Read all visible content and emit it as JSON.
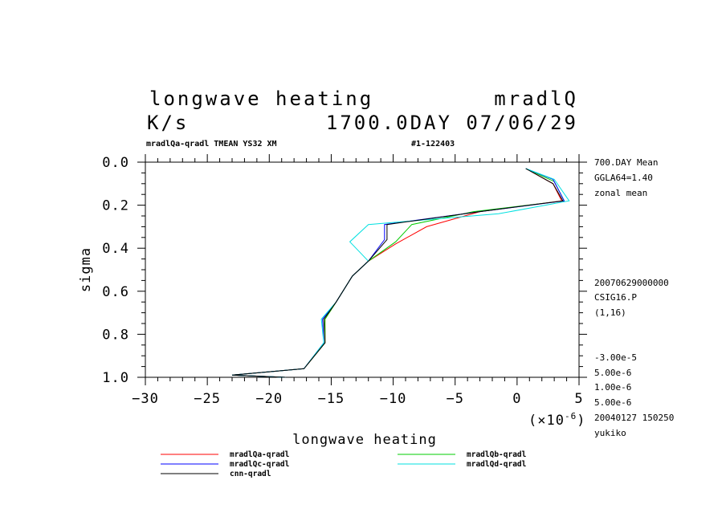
{
  "header": {
    "title_left": "longwave heating",
    "title_right": "mradlQ",
    "units": "K/s",
    "time_label": "1700.0DAY 07/06/29",
    "subtitle": "mradlQa-qradl TMEAN YS32 XM",
    "run_id": "#1-122403"
  },
  "side_info": {
    "top": [
      "700.DAY Mean",
      "GGLA64=1.40",
      "zonal mean"
    ],
    "middle": [
      "20070629000000",
      "CSIG16.P",
      "(1,16)"
    ],
    "bottom": [
      "-3.00e-5",
      "5.00e-6",
      "1.00e-6",
      "5.00e-6",
      "20040127 150250",
      "yukiko"
    ]
  },
  "chart_data": {
    "type": "line",
    "title": "longwave heating",
    "xlabel": "longwave heating",
    "ylabel": "sigma",
    "x_scale_note": "(×10",
    "x_scale_exp": "-6",
    "x_scale_close": ")",
    "xlim": [
      -30,
      5
    ],
    "ylim": [
      1.0,
      0.0
    ],
    "y_inverted": true,
    "x_ticks": [
      -30,
      -25,
      -20,
      -15,
      -10,
      -5,
      0,
      5
    ],
    "x_tick_labels": [
      "−30",
      "−25",
      "−20",
      "−15",
      "−10",
      "−5",
      "0",
      "5"
    ],
    "y_ticks": [
      0.0,
      0.2,
      0.4,
      0.6,
      0.8,
      1.0
    ],
    "y_tick_labels": [
      "0.0",
      "0.2",
      "0.4",
      "0.6",
      "0.8",
      "1.0"
    ],
    "grid": false,
    "legend_position": "bottom",
    "series": [
      {
        "name": "mradlQa-qradl",
        "color": "#ff0000",
        "points": [
          [
            0.7,
            0.03
          ],
          [
            2.9,
            0.1
          ],
          [
            3.6,
            0.18
          ],
          [
            -3.0,
            0.23
          ],
          [
            -7.3,
            0.3
          ],
          [
            -9.8,
            0.38
          ],
          [
            -12,
            0.46
          ],
          [
            -13.3,
            0.53
          ],
          [
            -14.6,
            0.65
          ],
          [
            -15.5,
            0.73
          ],
          [
            -15.5,
            0.84
          ],
          [
            -17.2,
            0.96
          ],
          [
            -23.0,
            0.99
          ],
          [
            -18.7,
            1.0
          ]
        ]
      },
      {
        "name": "mradlQb-qradl",
        "color": "#00cc00",
        "points": [
          [
            0.7,
            0.03
          ],
          [
            3.0,
            0.09
          ],
          [
            3.8,
            0.18
          ],
          [
            -3.5,
            0.23
          ],
          [
            -8.5,
            0.29
          ],
          [
            -9.8,
            0.37
          ],
          [
            -12,
            0.46
          ],
          [
            -13.3,
            0.53
          ],
          [
            -14.6,
            0.65
          ],
          [
            -15.5,
            0.73
          ],
          [
            -15.5,
            0.84
          ],
          [
            -17.2,
            0.96
          ],
          [
            -23.0,
            0.99
          ],
          [
            -18.7,
            1.0
          ]
        ]
      },
      {
        "name": "mradlQc-qradl",
        "color": "#0000ff",
        "points": [
          [
            0.7,
            0.03
          ],
          [
            2.9,
            0.08
          ],
          [
            3.8,
            0.18
          ],
          [
            -3.0,
            0.23
          ],
          [
            -10.7,
            0.29
          ],
          [
            -10.7,
            0.36
          ],
          [
            -12,
            0.46
          ],
          [
            -13.3,
            0.53
          ],
          [
            -14.6,
            0.65
          ],
          [
            -15.7,
            0.73
          ],
          [
            -15.6,
            0.84
          ],
          [
            -17.2,
            0.96
          ],
          [
            -23.0,
            0.99
          ],
          [
            -18.7,
            1.0
          ]
        ]
      },
      {
        "name": "mradlQd-qradl",
        "color": "#00e0e0",
        "points": [
          [
            0.7,
            0.03
          ],
          [
            3.0,
            0.08
          ],
          [
            4.2,
            0.18
          ],
          [
            -1.5,
            0.24
          ],
          [
            -12.0,
            0.29
          ],
          [
            -13.5,
            0.37
          ],
          [
            -12,
            0.46
          ],
          [
            -13.3,
            0.53
          ],
          [
            -14.6,
            0.65
          ],
          [
            -15.8,
            0.73
          ],
          [
            -15.6,
            0.84
          ],
          [
            -17.2,
            0.96
          ],
          [
            -23.0,
            0.99
          ],
          [
            -18.7,
            1.0
          ]
        ]
      },
      {
        "name": "cnn-qradl",
        "color": "#000000",
        "points": [
          [
            0.7,
            0.03
          ],
          [
            2.9,
            0.1
          ],
          [
            3.7,
            0.18
          ],
          [
            -3.0,
            0.23
          ],
          [
            -10.5,
            0.29
          ],
          [
            -10.5,
            0.36
          ],
          [
            -12,
            0.46
          ],
          [
            -13.3,
            0.53
          ],
          [
            -14.6,
            0.65
          ],
          [
            -15.6,
            0.73
          ],
          [
            -15.5,
            0.84
          ],
          [
            -17.2,
            0.96
          ],
          [
            -23.0,
            0.99
          ],
          [
            -18.7,
            1.0
          ]
        ]
      }
    ]
  }
}
